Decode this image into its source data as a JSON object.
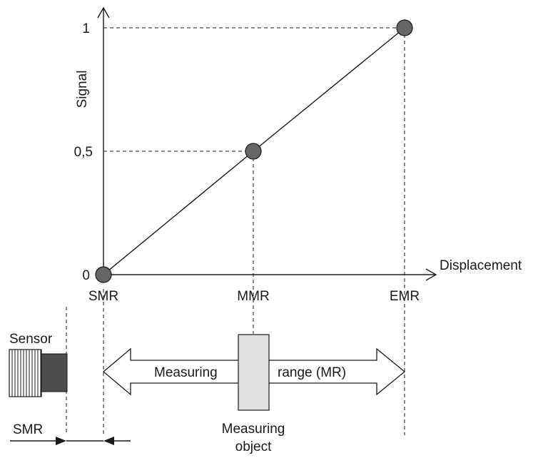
{
  "diagram": {
    "y_axis_label": "Signal",
    "x_axis_label": "Displacement",
    "y_ticks": [
      "1",
      "0,5",
      "0"
    ],
    "x_ticks": [
      "SMR",
      "MMR",
      "EMR"
    ],
    "sensor_label": "Sensor",
    "smr_label": "SMR",
    "arrow_label_left": "Measuring",
    "arrow_label_right": "range (MR)",
    "object_label_line1": "Measuring",
    "object_label_line2": "object"
  },
  "chart_data": {
    "type": "line",
    "x": [
      "SMR",
      "MMR",
      "EMR"
    ],
    "y": [
      0,
      0.5,
      1
    ],
    "ylim": [
      0,
      1
    ],
    "xlabel": "Displacement",
    "ylabel": "Signal"
  }
}
